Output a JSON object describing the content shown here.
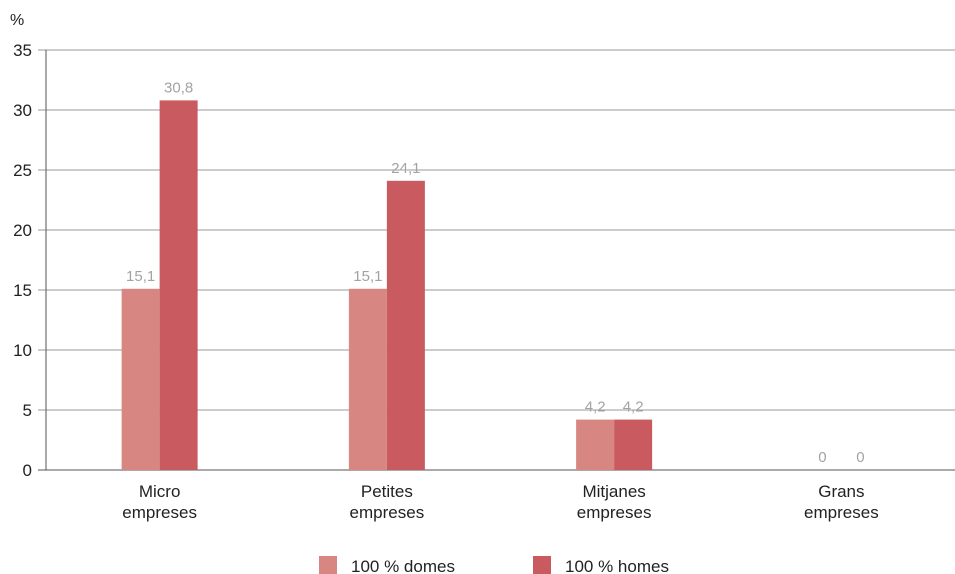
{
  "chart_data": {
    "type": "bar",
    "ylabel": "%",
    "ylim": [
      0,
      35
    ],
    "yticks": [
      0,
      5,
      10,
      15,
      20,
      25,
      30,
      35
    ],
    "grid": true,
    "legend_position": "bottom",
    "categories": [
      [
        "Micro",
        "empreses"
      ],
      [
        "Petites",
        "empreses"
      ],
      [
        "Mitjanes",
        "empreses"
      ],
      [
        "Grans",
        "empreses"
      ]
    ],
    "series": [
      {
        "name": "100 % domes",
        "color": "#d88681",
        "values": [
          15.1,
          15.1,
          4.2,
          0
        ],
        "labels": [
          "15,1",
          "15,1",
          "4,2",
          "0"
        ]
      },
      {
        "name": "100 % homes",
        "color": "#c95a5f",
        "values": [
          30.8,
          24.1,
          4.2,
          0
        ],
        "labels": [
          "30,8",
          "24,1",
          "4,2",
          "0"
        ]
      }
    ]
  }
}
